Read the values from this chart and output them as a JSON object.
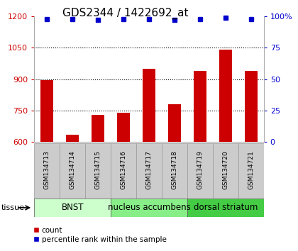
{
  "title": "GDS2344 / 1422692_at",
  "samples": [
    "GSM134713",
    "GSM134714",
    "GSM134715",
    "GSM134716",
    "GSM134717",
    "GSM134718",
    "GSM134719",
    "GSM134720",
    "GSM134721"
  ],
  "counts": [
    895,
    635,
    730,
    740,
    950,
    780,
    940,
    1040,
    940
  ],
  "percentiles": [
    98,
    98,
    97,
    98,
    98,
    97,
    98,
    99,
    98
  ],
  "ylim_left": [
    600,
    1200
  ],
  "ylim_right": [
    0,
    100
  ],
  "yticks_left": [
    600,
    750,
    900,
    1050,
    1200
  ],
  "yticks_right": [
    0,
    25,
    50,
    75,
    100
  ],
  "bar_color": "#cc0000",
  "dot_color": "#0000cc",
  "groups": [
    {
      "label": "BNST",
      "start": 0,
      "end": 3,
      "color": "#ccffcc"
    },
    {
      "label": "nucleus accumbens",
      "start": 3,
      "end": 6,
      "color": "#88ee88"
    },
    {
      "label": "dorsal striatum",
      "start": 6,
      "end": 9,
      "color": "#44cc44"
    }
  ],
  "grid_yticks": [
    750,
    900,
    1050
  ],
  "title_fontsize": 11,
  "tick_fontsize": 8,
  "bar_width": 0.5,
  "sample_label_fontsize": 6.5,
  "group_label_fontsize": 8.5,
  "tissue_label": "tissue",
  "legend_count_label": "count",
  "legend_percentile_label": "percentile rank within the sample",
  "sample_box_color": "#cccccc",
  "sample_box_edge_color": "#999999",
  "right_tick_label": "100%"
}
